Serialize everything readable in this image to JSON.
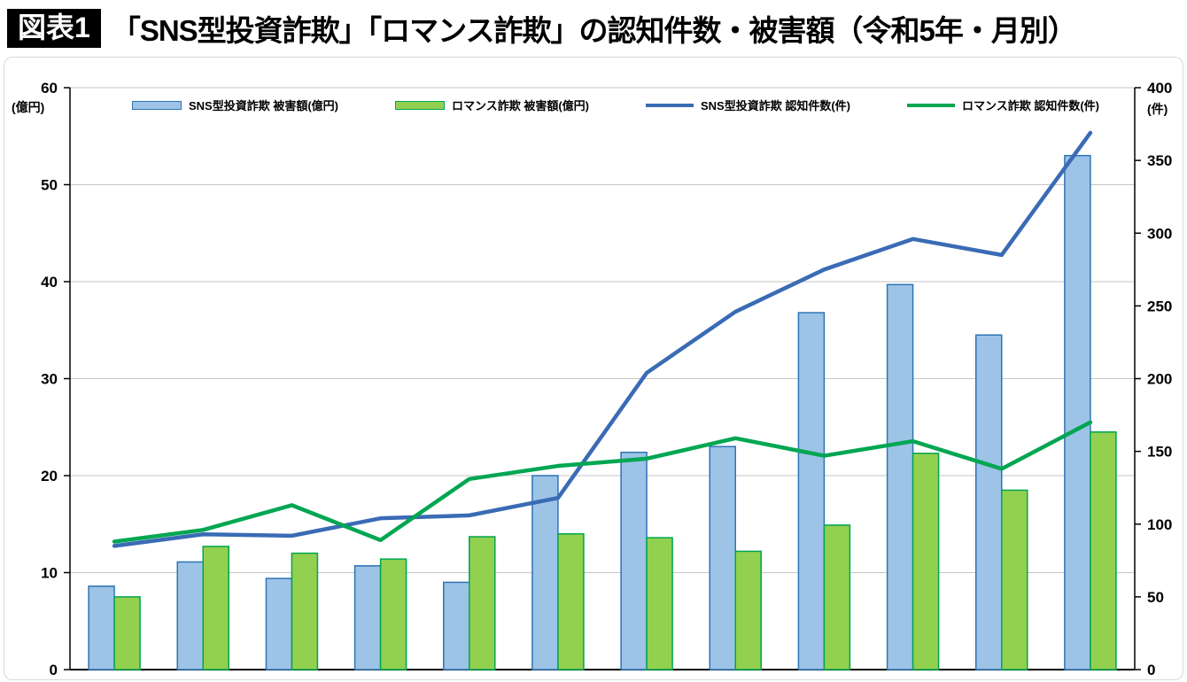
{
  "header": {
    "badge": "図表1",
    "title": "「SNS型投資詐欺」「ロマンス詐欺」の認知件数・被害額（令和5年・月別）"
  },
  "chart_data": {
    "type": "combo-bar-line",
    "title": "「SNS型投資詐欺」「ロマンス詐欺」の認知件数・被害額（令和5年・月別）",
    "points": 12,
    "grid": "horizontal",
    "grid_color": "#c6c6c6",
    "axis_color": "#000000",
    "left_axis": {
      "unit": "(億円)",
      "min": 0,
      "max": 60,
      "ticks": [
        0,
        10,
        20,
        30,
        40,
        50,
        60
      ]
    },
    "right_axis": {
      "unit": "(件)",
      "min": 0,
      "max": 400,
      "ticks": [
        0,
        50,
        100,
        150,
        200,
        250,
        300,
        350,
        400
      ]
    },
    "series": [
      {
        "name": "SNS型投資詐欺 被害額(億円)",
        "type": "bar",
        "axis": "left",
        "color": "#9dc3e6",
        "border": "#2e74b5",
        "values": [
          8.6,
          11.1,
          9.4,
          10.7,
          9.0,
          20.0,
          22.4,
          23.0,
          36.8,
          39.7,
          34.5,
          53.0
        ]
      },
      {
        "name": "ロマンス詐欺 被害額(億円)",
        "type": "bar",
        "axis": "left",
        "color": "#92d050",
        "border": "#00a651",
        "values": [
          7.5,
          12.7,
          12.0,
          11.4,
          13.7,
          14.0,
          13.6,
          12.2,
          14.9,
          22.3,
          18.5,
          24.5
        ]
      },
      {
        "name": "SNS型投資詐欺 認知件数(件)",
        "type": "line",
        "axis": "right",
        "color": "#3a6bb5",
        "values": [
          85,
          93,
          92,
          104,
          106,
          118,
          204,
          246,
          275,
          296,
          285,
          369
        ]
      },
      {
        "name": "ロマンス詐欺 認知件数(件)",
        "type": "line",
        "axis": "right",
        "color": "#00a651",
        "values": [
          88,
          96,
          113,
          89,
          131,
          140,
          145,
          159,
          147,
          157,
          138,
          170
        ]
      }
    ]
  }
}
